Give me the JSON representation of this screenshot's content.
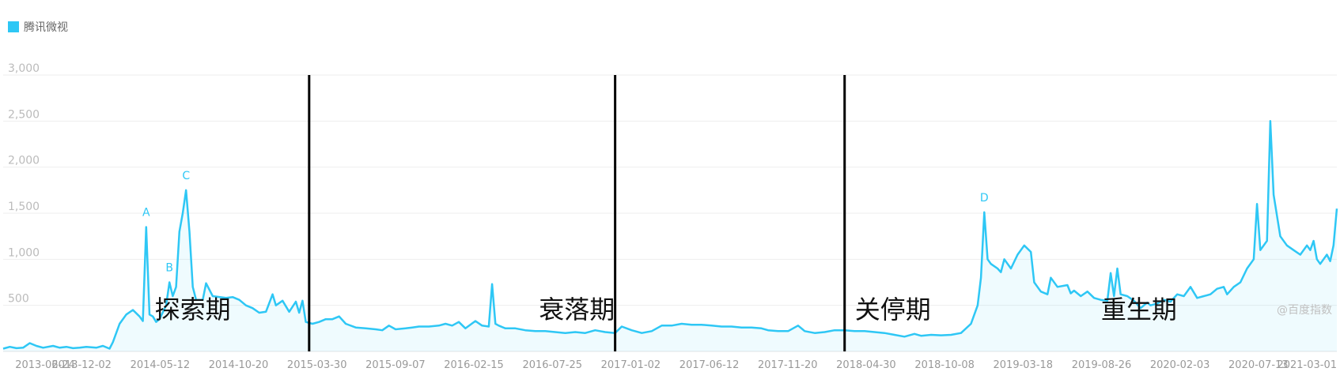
{
  "legend": {
    "label": "腾讯微视",
    "color": "#2ec7f5"
  },
  "watermark": "@百度指数",
  "chart_data": {
    "type": "area",
    "series": [
      {
        "name": "腾讯微视",
        "color": "#2ec7f5"
      }
    ],
    "ylim": [
      0,
      3000
    ],
    "y_ticks": [
      {
        "value": 3000,
        "label": "3,000"
      },
      {
        "value": 2500,
        "label": "2,500"
      },
      {
        "value": 2000,
        "label": "2,000"
      },
      {
        "value": 1500,
        "label": "1,500"
      },
      {
        "value": 1000,
        "label": "1,000"
      },
      {
        "value": 500,
        "label": "500"
      }
    ],
    "x_ticks": [
      "2013-06-24",
      "2013-12-02",
      "2014-05-12",
      "2014-10-20",
      "2015-03-30",
      "2015-09-07",
      "2016-02-15",
      "2016-07-25",
      "2017-01-02",
      "2017-06-12",
      "2017-11-20",
      "2018-04-30",
      "2018-10-08",
      "2019-03-18",
      "2019-08-26",
      "2020-02-03",
      "2020-07-13",
      "2021-03-01"
    ],
    "x_start": "2013-06-24",
    "x_end": "2021-03-01",
    "points": [
      [
        "2013-06-24",
        30
      ],
      [
        "2013-07-08",
        50
      ],
      [
        "2013-07-22",
        35
      ],
      [
        "2013-08-05",
        40
      ],
      [
        "2013-08-19",
        90
      ],
      [
        "2013-09-02",
        60
      ],
      [
        "2013-09-16",
        40
      ],
      [
        "2013-10-07",
        60
      ],
      [
        "2013-10-21",
        40
      ],
      [
        "2013-11-04",
        50
      ],
      [
        "2013-11-18",
        35
      ],
      [
        "2013-12-02",
        40
      ],
      [
        "2013-12-16",
        50
      ],
      [
        "2014-01-06",
        40
      ],
      [
        "2014-01-20",
        60
      ],
      [
        "2014-02-03",
        30
      ],
      [
        "2014-02-10",
        100
      ],
      [
        "2014-02-24",
        300
      ],
      [
        "2014-03-10",
        400
      ],
      [
        "2014-03-24",
        450
      ],
      [
        "2014-04-07",
        380
      ],
      [
        "2014-04-14",
        330
      ],
      [
        "2014-04-21",
        1350
      ],
      [
        "2014-04-28",
        400
      ],
      [
        "2014-05-05",
        380
      ],
      [
        "2014-05-12",
        320
      ],
      [
        "2014-05-19",
        350
      ],
      [
        "2014-06-02",
        500
      ],
      [
        "2014-06-09",
        750
      ],
      [
        "2014-06-16",
        600
      ],
      [
        "2014-06-23",
        700
      ],
      [
        "2014-06-30",
        1300
      ],
      [
        "2014-07-07",
        1500
      ],
      [
        "2014-07-14",
        1750
      ],
      [
        "2014-07-21",
        1300
      ],
      [
        "2014-07-28",
        700
      ],
      [
        "2014-08-04",
        560
      ],
      [
        "2014-08-18",
        560
      ],
      [
        "2014-08-25",
        740
      ],
      [
        "2014-09-08",
        600
      ],
      [
        "2014-10-06",
        580
      ],
      [
        "2014-10-20",
        590
      ],
      [
        "2014-11-03",
        560
      ],
      [
        "2014-11-17",
        500
      ],
      [
        "2014-12-01",
        470
      ],
      [
        "2014-12-15",
        420
      ],
      [
        "2014-12-29",
        430
      ],
      [
        "2015-01-12",
        620
      ],
      [
        "2015-01-19",
        500
      ],
      [
        "2015-02-02",
        550
      ],
      [
        "2015-02-16",
        430
      ],
      [
        "2015-03-02",
        540
      ],
      [
        "2015-03-09",
        420
      ],
      [
        "2015-03-16",
        550
      ],
      [
        "2015-03-23",
        320
      ],
      [
        "2015-04-06",
        300
      ],
      [
        "2015-04-20",
        320
      ],
      [
        "2015-05-04",
        350
      ],
      [
        "2015-05-18",
        350
      ],
      [
        "2015-06-01",
        380
      ],
      [
        "2015-06-15",
        300
      ],
      [
        "2015-07-06",
        260
      ],
      [
        "2015-07-27",
        250
      ],
      [
        "2015-08-17",
        240
      ],
      [
        "2015-08-31",
        230
      ],
      [
        "2015-09-14",
        280
      ],
      [
        "2015-09-28",
        240
      ],
      [
        "2015-10-19",
        250
      ],
      [
        "2015-11-02",
        260
      ],
      [
        "2015-11-16",
        270
      ],
      [
        "2015-12-07",
        270
      ],
      [
        "2015-12-28",
        280
      ],
      [
        "2016-01-11",
        300
      ],
      [
        "2016-01-25",
        280
      ],
      [
        "2016-02-08",
        320
      ],
      [
        "2016-02-22",
        250
      ],
      [
        "2016-03-14",
        330
      ],
      [
        "2016-03-28",
        280
      ],
      [
        "2016-04-11",
        270
      ],
      [
        "2016-04-18",
        730
      ],
      [
        "2016-04-25",
        300
      ],
      [
        "2016-05-02",
        280
      ],
      [
        "2016-05-16",
        250
      ],
      [
        "2016-06-06",
        250
      ],
      [
        "2016-06-27",
        230
      ],
      [
        "2016-07-18",
        220
      ],
      [
        "2016-08-08",
        220
      ],
      [
        "2016-08-29",
        210
      ],
      [
        "2016-09-19",
        200
      ],
      [
        "2016-10-10",
        210
      ],
      [
        "2016-10-31",
        200
      ],
      [
        "2016-11-21",
        230
      ],
      [
        "2016-12-12",
        210
      ],
      [
        "2017-01-02",
        200
      ],
      [
        "2017-01-16",
        270
      ],
      [
        "2017-02-06",
        230
      ],
      [
        "2017-02-27",
        200
      ],
      [
        "2017-03-20",
        220
      ],
      [
        "2017-04-10",
        280
      ],
      [
        "2017-05-01",
        280
      ],
      [
        "2017-05-22",
        300
      ],
      [
        "2017-06-12",
        290
      ],
      [
        "2017-07-03",
        290
      ],
      [
        "2017-07-24",
        280
      ],
      [
        "2017-08-14",
        270
      ],
      [
        "2017-09-04",
        270
      ],
      [
        "2017-09-25",
        260
      ],
      [
        "2017-10-16",
        260
      ],
      [
        "2017-11-06",
        250
      ],
      [
        "2017-11-20",
        230
      ],
      [
        "2017-12-11",
        220
      ],
      [
        "2018-01-01",
        220
      ],
      [
        "2018-01-22",
        280
      ],
      [
        "2018-02-05",
        220
      ],
      [
        "2018-02-26",
        200
      ],
      [
        "2018-03-19",
        210
      ],
      [
        "2018-04-09",
        230
      ],
      [
        "2018-04-30",
        230
      ],
      [
        "2018-05-21",
        220
      ],
      [
        "2018-06-11",
        220
      ],
      [
        "2018-07-02",
        210
      ],
      [
        "2018-07-23",
        200
      ],
      [
        "2018-08-13",
        180
      ],
      [
        "2018-09-03",
        160
      ],
      [
        "2018-09-24",
        190
      ],
      [
        "2018-10-08",
        170
      ],
      [
        "2018-10-29",
        180
      ],
      [
        "2018-11-19",
        175
      ],
      [
        "2018-12-10",
        180
      ],
      [
        "2018-12-31",
        200
      ],
      [
        "2019-01-21",
        300
      ],
      [
        "2019-02-04",
        500
      ],
      [
        "2019-02-11",
        800
      ],
      [
        "2019-02-18",
        1510
      ],
      [
        "2019-02-25",
        1000
      ],
      [
        "2019-03-04",
        950
      ],
      [
        "2019-03-18",
        900
      ],
      [
        "2019-03-25",
        860
      ],
      [
        "2019-04-01",
        1000
      ],
      [
        "2019-04-15",
        900
      ],
      [
        "2019-04-29",
        1050
      ],
      [
        "2019-05-13",
        1150
      ],
      [
        "2019-05-27",
        1080
      ],
      [
        "2019-06-03",
        750
      ],
      [
        "2019-06-17",
        650
      ],
      [
        "2019-07-01",
        620
      ],
      [
        "2019-07-08",
        800
      ],
      [
        "2019-07-22",
        700
      ],
      [
        "2019-08-12",
        720
      ],
      [
        "2019-08-19",
        630
      ],
      [
        "2019-08-26",
        660
      ],
      [
        "2019-09-09",
        600
      ],
      [
        "2019-09-23",
        650
      ],
      [
        "2019-10-07",
        580
      ],
      [
        "2019-10-21",
        560
      ],
      [
        "2019-11-04",
        550
      ],
      [
        "2019-11-11",
        850
      ],
      [
        "2019-11-18",
        600
      ],
      [
        "2019-11-25",
        900
      ],
      [
        "2019-12-02",
        620
      ],
      [
        "2019-12-16",
        600
      ],
      [
        "2019-12-30",
        550
      ],
      [
        "2020-01-13",
        470
      ],
      [
        "2020-01-27",
        530
      ],
      [
        "2020-02-03",
        500
      ],
      [
        "2020-02-17",
        520
      ],
      [
        "2020-03-02",
        560
      ],
      [
        "2020-03-16",
        540
      ],
      [
        "2020-03-30",
        620
      ],
      [
        "2020-04-13",
        600
      ],
      [
        "2020-04-27",
        700
      ],
      [
        "2020-05-11",
        580
      ],
      [
        "2020-05-25",
        600
      ],
      [
        "2020-06-08",
        620
      ],
      [
        "2020-06-22",
        680
      ],
      [
        "2020-07-06",
        700
      ],
      [
        "2020-07-13",
        620
      ],
      [
        "2020-07-27",
        700
      ],
      [
        "2020-08-10",
        750
      ],
      [
        "2020-08-24",
        900
      ],
      [
        "2020-09-07",
        1000
      ],
      [
        "2020-09-14",
        1600
      ],
      [
        "2020-09-21",
        1100
      ],
      [
        "2020-10-05",
        1200
      ],
      [
        "2020-10-12",
        2500
      ],
      [
        "2020-10-19",
        1700
      ],
      [
        "2020-11-02",
        1250
      ],
      [
        "2020-11-16",
        1150
      ],
      [
        "2020-11-30",
        1100
      ],
      [
        "2020-12-14",
        1050
      ],
      [
        "2020-12-28",
        1150
      ],
      [
        "2021-01-04",
        1100
      ],
      [
        "2021-01-11",
        1200
      ],
      [
        "2021-01-18",
        1000
      ],
      [
        "2021-01-25",
        950
      ],
      [
        "2021-02-01",
        1000
      ],
      [
        "2021-02-08",
        1050
      ],
      [
        "2021-02-15",
        980
      ],
      [
        "2021-02-22",
        1150
      ],
      [
        "2021-03-01",
        1550
      ]
    ],
    "annotations": [
      {
        "label": "A",
        "x": "2014-04-21",
        "y": 1350
      },
      {
        "label": "B",
        "x": "2014-06-09",
        "y": 750
      },
      {
        "label": "C",
        "x": "2014-07-14",
        "y": 1750
      },
      {
        "label": "D",
        "x": "2019-02-18",
        "y": 1510
      }
    ],
    "phases": [
      {
        "label": "探索期",
        "from": "2013-12-02",
        "to": "2015-03-23"
      },
      {
        "label": "衰落期",
        "from": "2015-03-30",
        "to": "2018-04-30"
      },
      {
        "label": "关停期",
        "from": "2018-04-30",
        "to": "2018-11-19"
      },
      {
        "label": "重生期",
        "from": "2018-11-19",
        "to": "2021-03-01"
      }
    ],
    "dividers": [
      "2015-03-30",
      "2017-01-02",
      "2018-04-30"
    ],
    "grid": true,
    "legend_position": "top-left"
  }
}
